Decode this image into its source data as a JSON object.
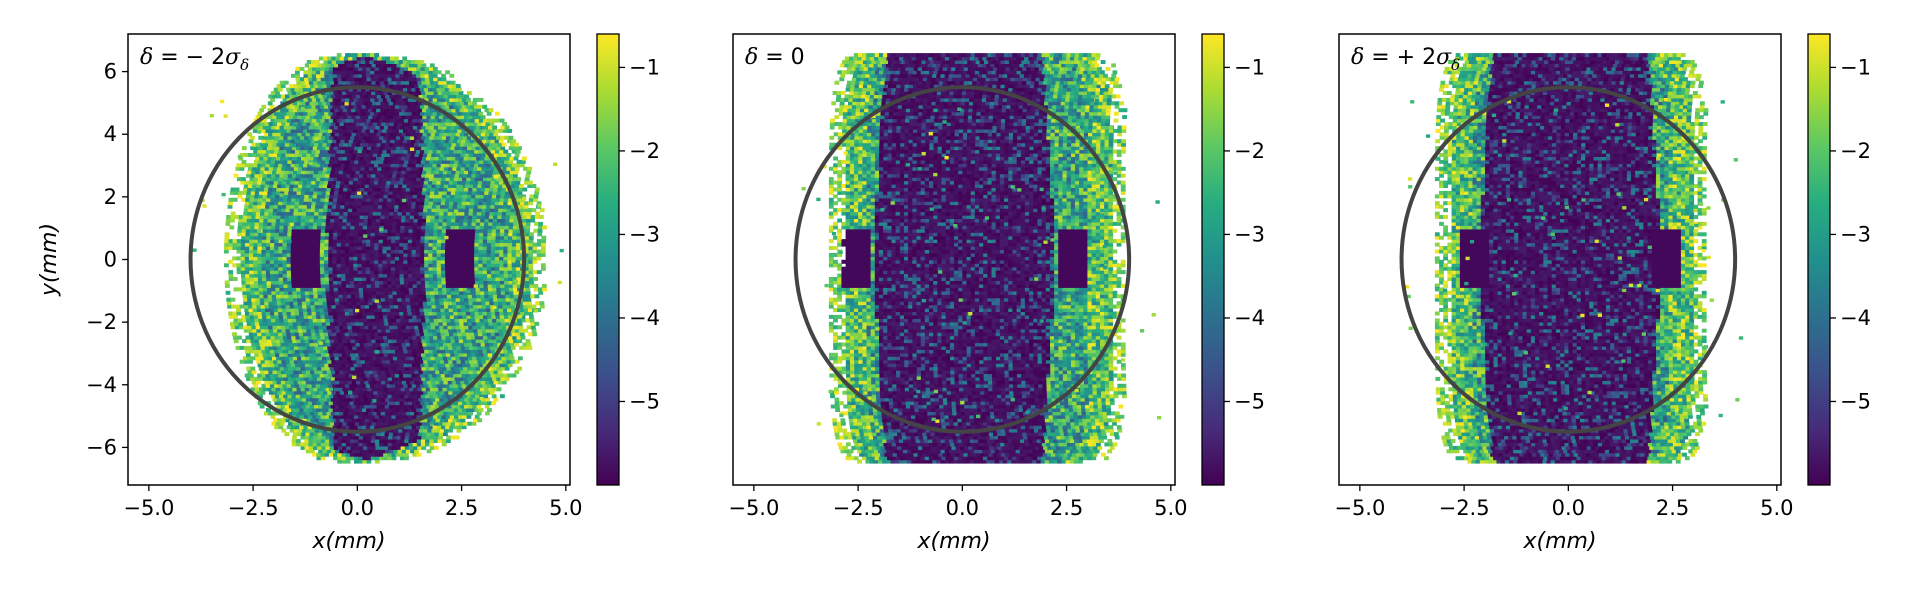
{
  "chart_data": [
    {
      "type": "heatmap",
      "annotation": {
        "var": "δ",
        "rel": " = − 2",
        "sig": "σ",
        "sub": "δ"
      },
      "xlabel": {
        "var": "x",
        "unit": "(mm)"
      },
      "ylabel": {
        "var": "y",
        "unit": "(mm)"
      },
      "xlim": [
        -5.5,
        5.1
      ],
      "ylim": [
        -7.2,
        7.2
      ],
      "xticks": [
        -5.0,
        -2.5,
        0.0,
        2.5,
        5.0
      ],
      "xtick_labels": [
        "−5.0",
        "−2.5",
        "0.0",
        "2.5",
        "5.0"
      ],
      "yticks": [
        -6,
        -4,
        -2,
        0,
        2,
        4,
        6
      ],
      "ytick_labels": [
        "−6",
        "−4",
        "−2",
        "0",
        "2",
        "4",
        "6"
      ],
      "colorbar": {
        "colormap": "viridis",
        "range": [
          -6,
          -0.6
        ],
        "ticks": [
          -5,
          -4,
          -3,
          -2,
          -1
        ],
        "tick_labels": [
          "−5",
          "−4",
          "−3",
          "−2",
          "−1"
        ]
      },
      "circle": {
        "center": [
          0,
          0
        ],
        "rx": 4.0,
        "ry": 5.5,
        "color": "#444444"
      },
      "distribution": {
        "x_range": [
          -3.2,
          4.5
        ],
        "y_range": [
          -6.5,
          6.5
        ],
        "core_halfwidth_x": 1.2,
        "lobes_x": [
          -1.3,
          2.4
        ]
      }
    },
    {
      "type": "heatmap",
      "annotation": {
        "var": "δ",
        "rel": " = 0",
        "sig": "",
        "sub": ""
      },
      "xlabel": {
        "var": "x",
        "unit": "(mm)"
      },
      "ylabel": null,
      "xlim": [
        -5.5,
        5.1
      ],
      "ylim": [
        -7.2,
        7.2
      ],
      "xticks": [
        -5.0,
        -2.5,
        0.0,
        2.5,
        5.0
      ],
      "xtick_labels": [
        "−5.0",
        "−2.5",
        "0.0",
        "2.5",
        "5.0"
      ],
      "yticks": [],
      "ytick_labels": [],
      "colorbar": {
        "colormap": "viridis",
        "range": [
          -6,
          -0.6
        ],
        "ticks": [
          -5,
          -4,
          -3,
          -2,
          -1
        ],
        "tick_labels": [
          "−5",
          "−4",
          "−3",
          "−2",
          "−1"
        ]
      },
      "circle": {
        "center": [
          0,
          0
        ],
        "rx": 4.0,
        "ry": 5.5,
        "color": "#444444"
      },
      "distribution": {
        "x_range": [
          -3.2,
          3.9
        ],
        "y_range": [
          -6.5,
          6.5
        ],
        "core_halfwidth_x": 2.2,
        "lobes_x": [
          -2.6,
          2.6
        ]
      }
    },
    {
      "type": "heatmap",
      "annotation": {
        "var": "δ",
        "rel": " = + 2",
        "sig": "σ",
        "sub": "δ"
      },
      "xlabel": {
        "var": "x",
        "unit": "(mm)"
      },
      "ylabel": null,
      "xlim": [
        -5.5,
        5.1
      ],
      "ylim": [
        -7.2,
        7.2
      ],
      "xticks": [
        -5.0,
        -2.5,
        0.0,
        2.5,
        5.0
      ],
      "xtick_labels": [
        "−5.0",
        "−2.5",
        "0.0",
        "2.5",
        "5.0"
      ],
      "yticks": [],
      "ytick_labels": [],
      "colorbar": {
        "colormap": "viridis",
        "range": [
          -6,
          -0.6
        ],
        "ticks": [
          -5,
          -4,
          -3,
          -2,
          -1
        ],
        "tick_labels": [
          "−5",
          "−4",
          "−3",
          "−2",
          "−1"
        ]
      },
      "circle": {
        "center": [
          0,
          0
        ],
        "rx": 4.0,
        "ry": 5.5,
        "color": "#444444"
      },
      "distribution": {
        "x_range": [
          -3.2,
          3.3
        ],
        "y_range": [
          -6.5,
          6.5
        ],
        "core_halfwidth_x": 2.2,
        "lobes_x": [
          -2.3,
          2.3
        ]
      }
    }
  ]
}
